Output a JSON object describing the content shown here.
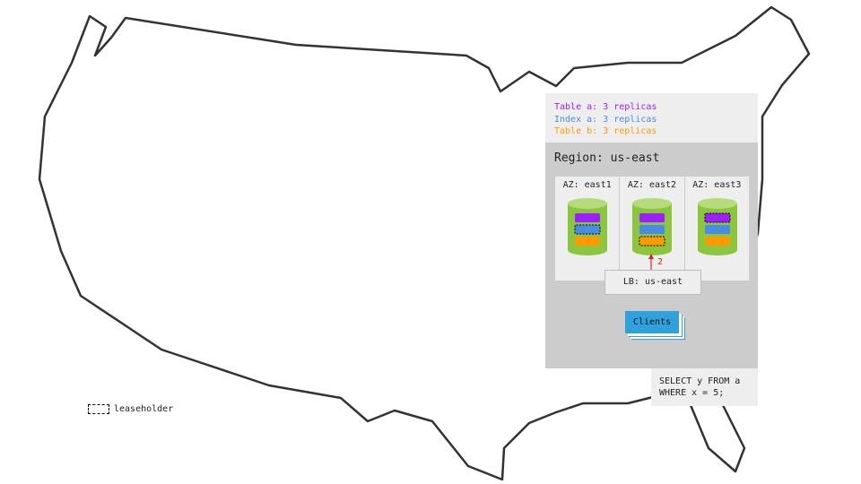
{
  "replicas": [
    {
      "label": "Table a: 3 replicas",
      "color": "#9b1fff"
    },
    {
      "label": "Index a: 3 replicas",
      "color": "#4a8ae8"
    },
    {
      "label": "Table b: 3 replicas",
      "color": "#ff9900"
    }
  ],
  "region": {
    "title": "Region: us-east",
    "azs": [
      {
        "label": "AZ: east1",
        "leaseholder": 1
      },
      {
        "label": "AZ: east2",
        "leaseholder": 2
      },
      {
        "label": "AZ: east3",
        "leaseholder": 0
      }
    ],
    "arrow_label": "2",
    "lb": "LB: us-east",
    "clients": "Clients"
  },
  "query": {
    "line1": "SELECT y FROM a",
    "line2": "WHERE x = 5;"
  },
  "legend": {
    "leaseholder": "leaseholder"
  },
  "colors": {
    "cylinder": "#8cc63f",
    "cylinder_top": "#b5dc7a",
    "arrow": "#e02020"
  }
}
